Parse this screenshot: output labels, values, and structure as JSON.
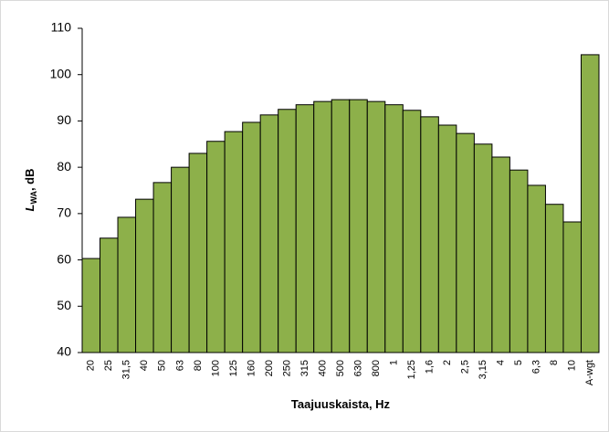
{
  "chart_data": {
    "type": "bar",
    "categories": [
      "20",
      "25",
      "31,5",
      "40",
      "50",
      "63",
      "80",
      "100",
      "125",
      "160",
      "200",
      "250",
      "315",
      "400",
      "500",
      "630",
      "800",
      "1",
      "1,25",
      "1,6",
      "2",
      "2,5",
      "3,15",
      "4",
      "5",
      "6,3",
      "8",
      "10",
      "A-wgt"
    ],
    "values": [
      60.3,
      64.7,
      69.2,
      73.1,
      76.7,
      80.0,
      83.0,
      85.6,
      87.7,
      89.7,
      91.3,
      92.5,
      93.5,
      94.2,
      94.6,
      94.6,
      94.2,
      93.5,
      92.3,
      90.9,
      89.1,
      87.3,
      85.0,
      82.2,
      79.4,
      76.1,
      72.0,
      68.2,
      104.3
    ],
    "color": "#8db04a",
    "ylim": [
      40,
      110
    ],
    "yticks": [
      40,
      50,
      60,
      70,
      80,
      90,
      100,
      110
    ],
    "grid": false,
    "ylabel": {
      "main": "L",
      "sub": "WA",
      "rest": ", dB"
    },
    "xlabel": "Taajuuskaista, Hz"
  }
}
